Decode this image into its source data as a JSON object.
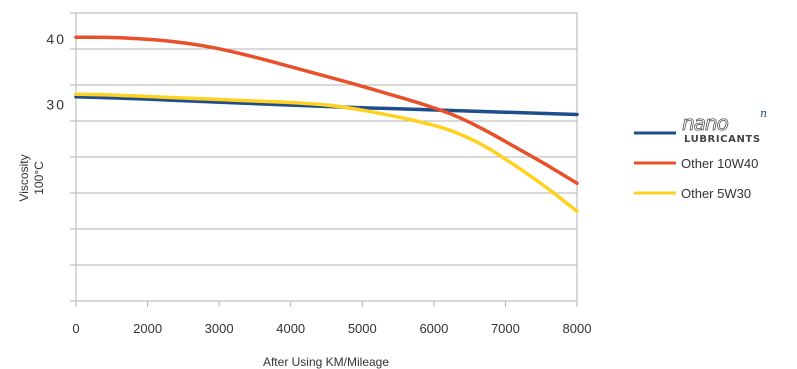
{
  "chart_data": {
    "type": "line",
    "title": "",
    "xlabel": "After Using KM/Mileage",
    "ylabel_lines": [
      "Viscosity",
      "100°C"
    ],
    "xlim": [
      0,
      8000
    ],
    "ylim": [
      0,
      44
    ],
    "grid": true,
    "legend_position": "right",
    "x_tick_labels": [
      "0",
      "2000",
      "3000",
      "4000",
      "5000",
      "6000",
      "7000",
      "8000"
    ],
    "y_tick_labels": [
      "40",
      "30"
    ],
    "y_tick_values": [
      40,
      30
    ],
    "series": [
      {
        "name": "nano Lubricants",
        "brand_text": "nano",
        "brand_superscript": "n",
        "brand_subtitle": "LUBRICANTS",
        "color": "#1f4e8c",
        "x": [
          0,
          1000,
          2000,
          3000,
          4000,
          5000,
          6000,
          7000,
          8000
        ],
        "y": [
          31.2,
          30.9,
          30.5,
          30.1,
          29.7,
          29.4,
          29.1,
          28.8,
          28.5
        ]
      },
      {
        "name": "Other 10W40",
        "color": "#e8502a",
        "x": [
          0,
          500,
          1000,
          1500,
          2000,
          2500,
          3000,
          3500,
          4000,
          4500,
          5000,
          5500,
          6000,
          6500,
          7000,
          7500,
          8000
        ],
        "y": [
          40.3,
          40.3,
          40.1,
          39.7,
          39.1,
          38.1,
          36.9,
          35.6,
          34.3,
          33.0,
          31.6,
          30.2,
          28.6,
          26.3,
          23.6,
          20.9,
          18.0
        ]
      },
      {
        "name": "Other 5W30",
        "color": "#ffd21f",
        "x": [
          0,
          500,
          1000,
          1500,
          2000,
          2500,
          3000,
          3500,
          4000,
          4500,
          5000,
          5500,
          6000,
          6500,
          7000,
          7500,
          8000
        ],
        "y": [
          31.6,
          31.5,
          31.3,
          31.1,
          30.9,
          30.7,
          30.5,
          30.3,
          30.0,
          29.3,
          28.4,
          27.4,
          26.1,
          23.9,
          20.8,
          17.5,
          13.7
        ]
      }
    ]
  }
}
